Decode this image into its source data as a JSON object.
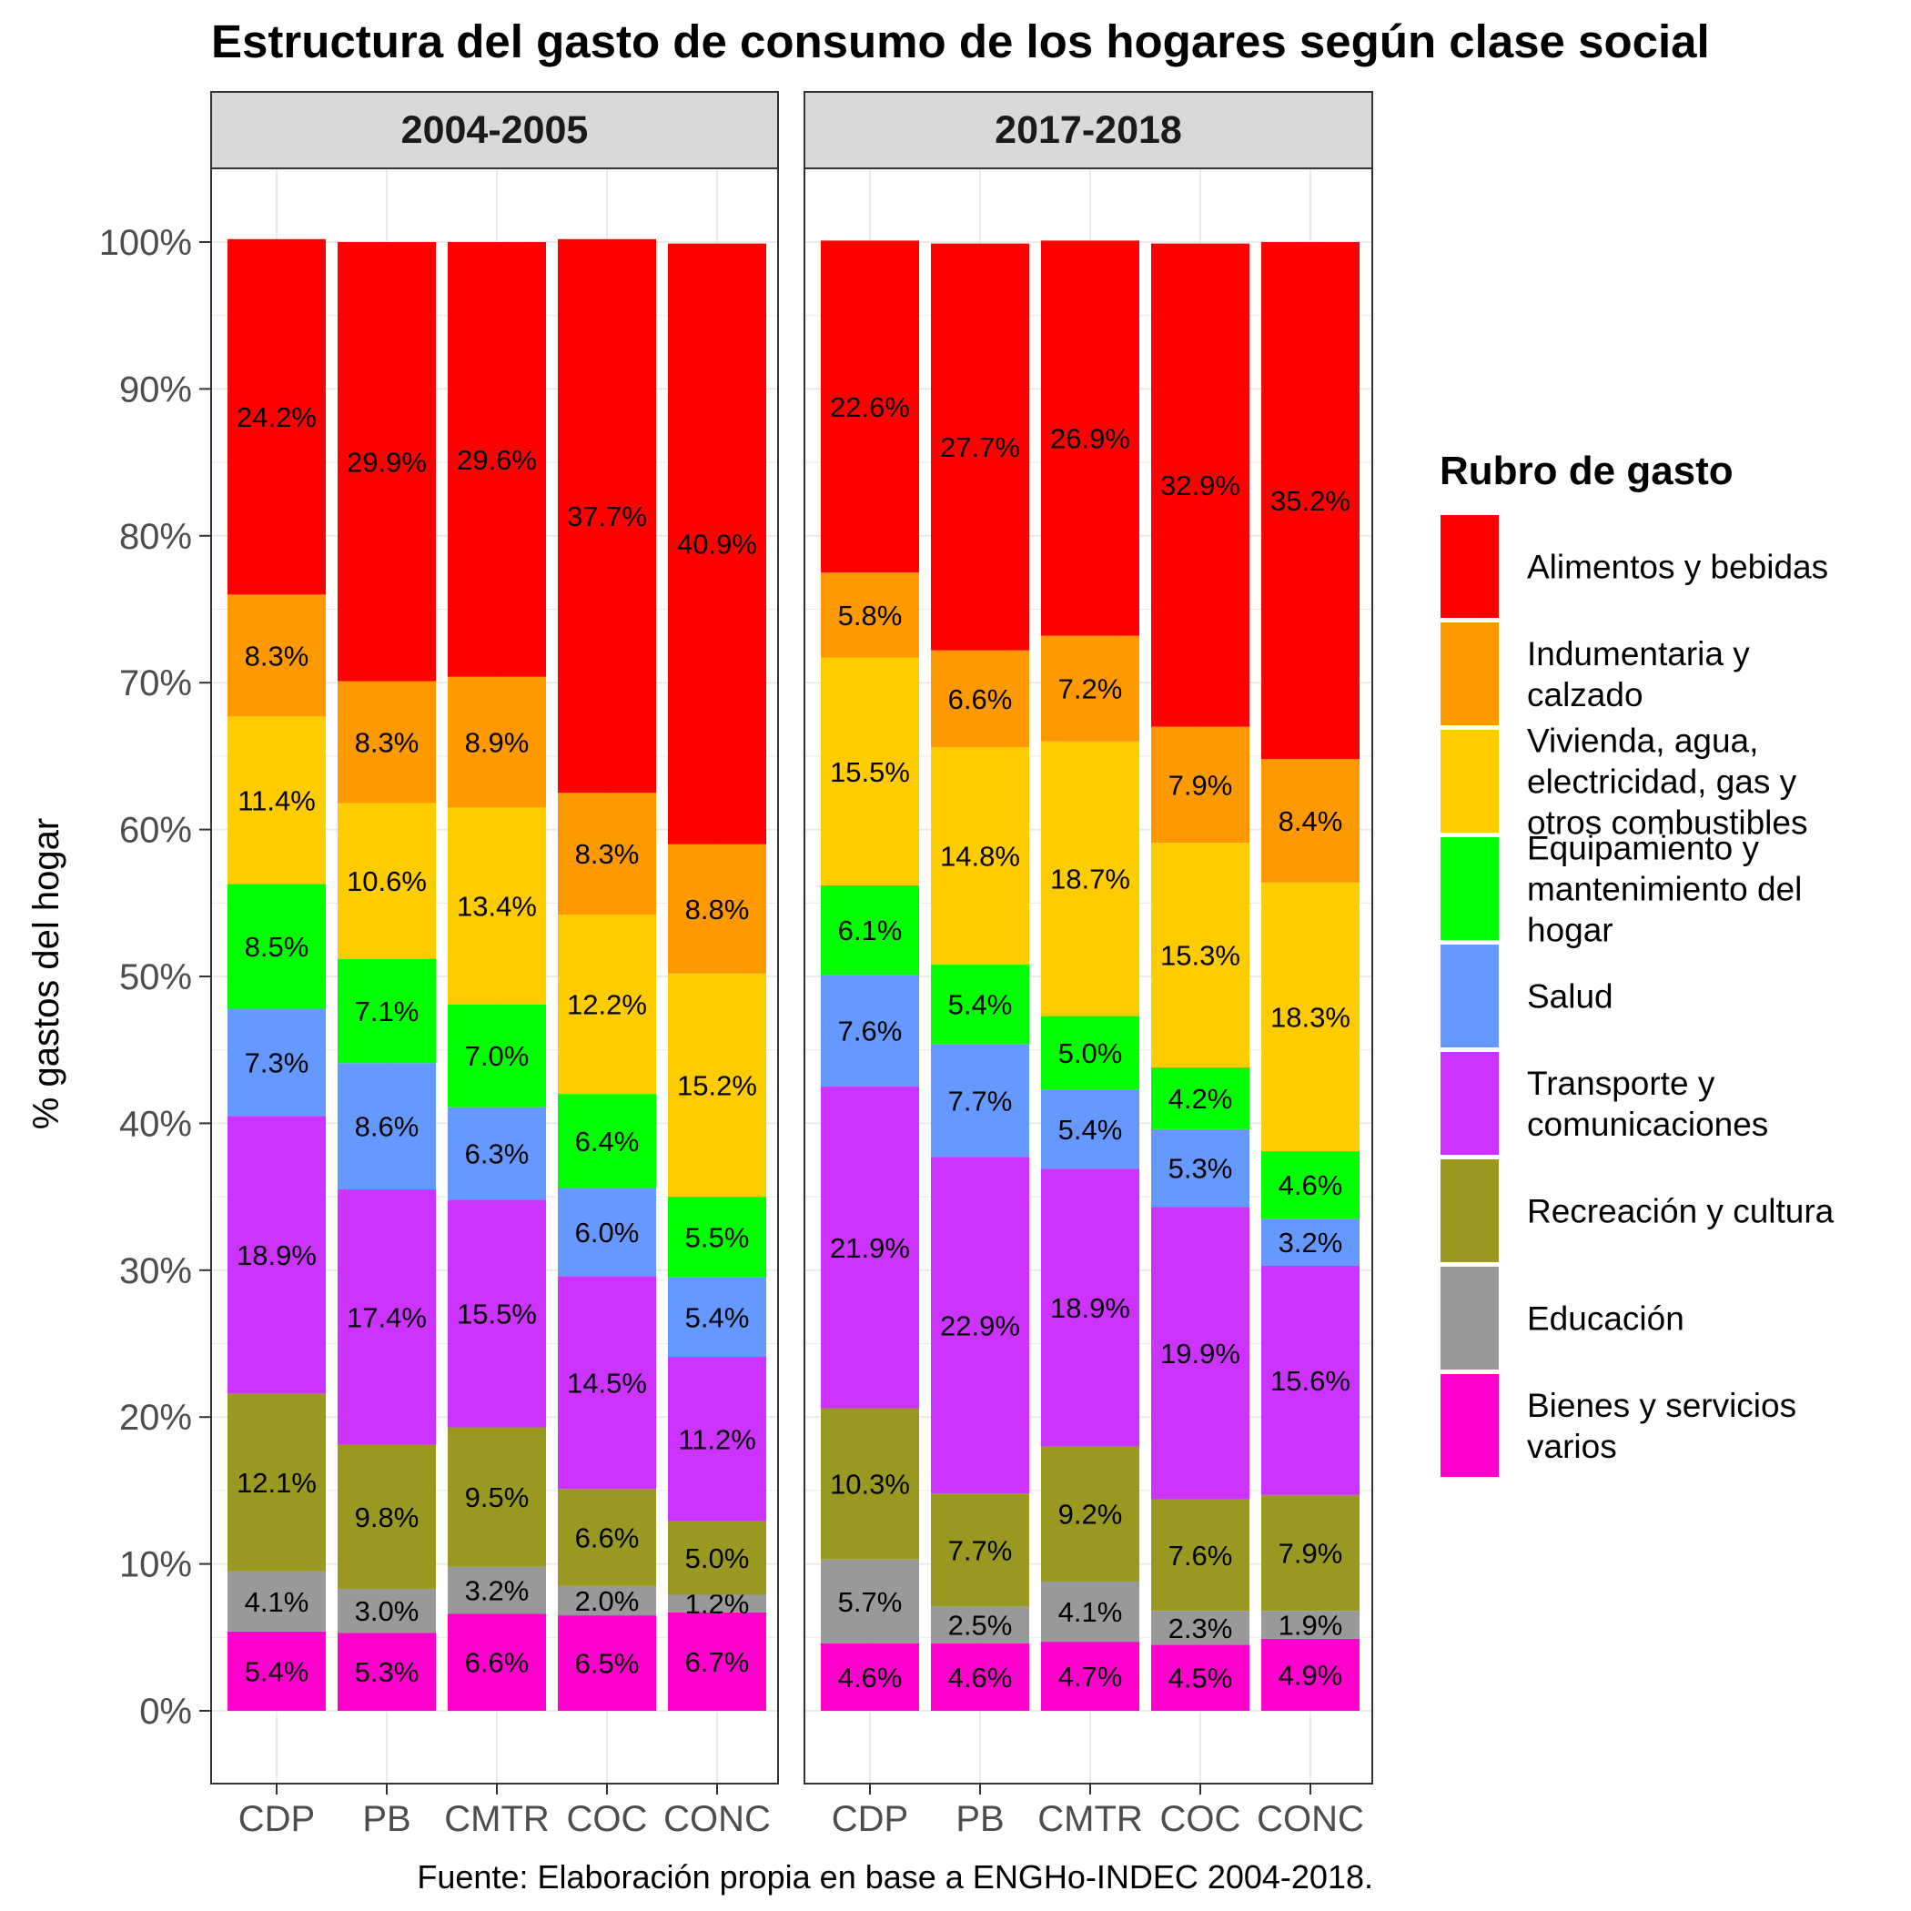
{
  "chart_data": {
    "type": "bar",
    "stacked": true,
    "title": "Estructura del gasto de consumo de los hogares según clase social",
    "ylabel": "% gastos del hogar",
    "ylim": [
      0,
      100
    ],
    "yticks": [
      "0%",
      "10%",
      "20%",
      "30%",
      "40%",
      "50%",
      "60%",
      "70%",
      "80%",
      "90%",
      "100%"
    ],
    "caption": "Fuente: Elaboración propia en base a ENGHo-INDEC 2004-2018.",
    "categories": [
      "CDP",
      "PB",
      "CMTR",
      "COC",
      "CONC"
    ],
    "legend": {
      "title": "Rubro de gasto",
      "position": "right",
      "entries": [
        {
          "lines": [
            "Alimentos y bebidas"
          ],
          "color": "#FF0000"
        },
        {
          "lines": [
            "Indumentaria y",
            "calzado"
          ],
          "color": "#FF9900"
        },
        {
          "lines": [
            "Vivienda, agua,",
            "electricidad, gas y",
            "otros combustibles"
          ],
          "color": "#FFCC00"
        },
        {
          "lines": [
            "Equipamiento y",
            "mantenimiento del",
            "hogar"
          ],
          "color": "#00FF00"
        },
        {
          "lines": [
            "Salud"
          ],
          "color": "#6699FF"
        },
        {
          "lines": [
            "Transporte y",
            "comunicaciones"
          ],
          "color": "#CC33FF"
        },
        {
          "lines": [
            "Recreación y cultura"
          ],
          "color": "#999922"
        },
        {
          "lines": [
            "Educación"
          ],
          "color": "#999999"
        },
        {
          "lines": [
            "Bienes y servicios",
            "varios"
          ],
          "color": "#FF00CC"
        }
      ]
    },
    "panels": [
      {
        "title": "2004-2005",
        "series": [
          {
            "name": "Alimentos y bebidas",
            "values": [
              24.2,
              29.9,
              29.6,
              37.7,
              40.9
            ],
            "labels": [
              "24.2%",
              "29.9%",
              "29.6%",
              "37.7%",
              "40.9%"
            ]
          },
          {
            "name": "Indumentaria y calzado",
            "values": [
              8.3,
              8.3,
              8.9,
              8.3,
              8.8
            ],
            "labels": [
              "8.3%",
              "8.3%",
              "8.9%",
              "8.3%",
              "8.8%"
            ]
          },
          {
            "name": "Vivienda, agua, electricidad, gas y otros combustibles",
            "values": [
              11.4,
              10.6,
              13.4,
              12.2,
              15.2
            ],
            "labels": [
              "11.4%",
              "10.6%",
              "13.4%",
              "12.2%",
              "15.2%"
            ]
          },
          {
            "name": "Equipamiento y mantenimiento del hogar",
            "values": [
              8.5,
              7.1,
              7.0,
              6.4,
              5.5
            ],
            "labels": [
              "8.5%",
              "7.1%",
              "7.0%",
              "6.4%",
              "5.5%"
            ]
          },
          {
            "name": "Salud",
            "values": [
              7.3,
              8.6,
              6.3,
              6.0,
              5.4
            ],
            "labels": [
              "7.3%",
              "8.6%",
              "6.3%",
              "6.0%",
              "5.4%"
            ]
          },
          {
            "name": "Transporte y comunicaciones",
            "values": [
              18.9,
              17.4,
              15.5,
              14.5,
              11.2
            ],
            "labels": [
              "18.9%",
              "17.4%",
              "15.5%",
              "14.5%",
              "11.2%"
            ]
          },
          {
            "name": "Recreación y cultura",
            "values": [
              12.1,
              9.8,
              9.5,
              6.6,
              5.0
            ],
            "labels": [
              "12.1%",
              "9.8%",
              "9.5%",
              "6.6%",
              "5.0%"
            ]
          },
          {
            "name": "Educación",
            "values": [
              4.1,
              3.0,
              3.2,
              2.0,
              1.2
            ],
            "labels": [
              "4.1%",
              "3.0%",
              "3.2%",
              "2.0%",
              "1.2%"
            ]
          },
          {
            "name": "Bienes y servicios varios",
            "values": [
              5.4,
              5.3,
              6.6,
              6.5,
              6.7
            ],
            "labels": [
              "5.4%",
              "5.3%",
              "6.6%",
              "6.5%",
              "6.7%"
            ]
          }
        ]
      },
      {
        "title": "2017-2018",
        "series": [
          {
            "name": "Alimentos y bebidas",
            "values": [
              22.6,
              27.7,
              26.9,
              32.9,
              35.2
            ],
            "labels": [
              "22.6%",
              "27.7%",
              "26.9%",
              "32.9%",
              "35.2%"
            ]
          },
          {
            "name": "Indumentaria y calzado",
            "values": [
              5.8,
              6.6,
              7.2,
              7.9,
              8.4
            ],
            "labels": [
              "5.8%",
              "6.6%",
              "7.2%",
              "7.9%",
              "8.4%"
            ]
          },
          {
            "name": "Vivienda, agua, electricidad, gas y otros combustibles",
            "values": [
              15.5,
              14.8,
              18.7,
              15.3,
              18.3
            ],
            "labels": [
              "15.5%",
              "14.8%",
              "18.7%",
              "15.3%",
              "18.3%"
            ]
          },
          {
            "name": "Equipamiento y mantenimiento del hogar",
            "values": [
              6.1,
              5.4,
              5.0,
              4.2,
              4.6
            ],
            "labels": [
              "6.1%",
              "5.4%",
              "5.0%",
              "4.2%",
              "4.6%"
            ]
          },
          {
            "name": "Salud",
            "values": [
              7.6,
              7.7,
              5.4,
              5.3,
              3.2
            ],
            "labels": [
              "7.6%",
              "7.7%",
              "5.4%",
              "5.3%",
              "3.2%"
            ]
          },
          {
            "name": "Transporte y comunicaciones",
            "values": [
              21.9,
              22.9,
              18.9,
              19.9,
              15.6
            ],
            "labels": [
              "21.9%",
              "22.9%",
              "18.9%",
              "19.9%",
              "15.6%"
            ]
          },
          {
            "name": "Recreación y cultura",
            "values": [
              10.3,
              7.7,
              9.2,
              7.6,
              7.9
            ],
            "labels": [
              "10.3%",
              "7.7%",
              "9.2%",
              "7.6%",
              "7.9%"
            ]
          },
          {
            "name": "Educación",
            "values": [
              5.7,
              2.5,
              4.1,
              2.3,
              1.9
            ],
            "labels": [
              "5.7%",
              "2.5%",
              "4.1%",
              "2.3%",
              "1.9%"
            ]
          },
          {
            "name": "Bienes y servicios varios",
            "values": [
              4.6,
              4.6,
              4.7,
              4.5,
              4.9
            ],
            "labels": [
              "4.6%",
              "4.6%",
              "4.7%",
              "4.5%",
              "4.9%"
            ]
          }
        ]
      }
    ]
  }
}
